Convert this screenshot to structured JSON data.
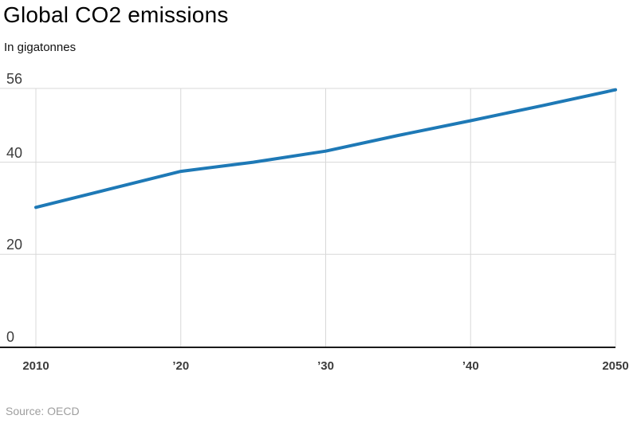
{
  "header": {
    "title": "Global CO2 emissions",
    "subtitle": "In gigatonnes"
  },
  "footer": {
    "source": "Source: OECD"
  },
  "colors": {
    "line": "#1e79b6",
    "grid": "#d8d8d8",
    "axis_line": "#1a1a1a",
    "tick_text": "#3c3c3c",
    "title_text": "#000000",
    "subtitle_text": "#111111",
    "source_text": "#9e9e9e",
    "background": "#ffffff"
  },
  "chart_data": {
    "type": "line",
    "title": "Global CO2 emissions",
    "ylabel_unit": "In gigatonnes",
    "source": "Source: OECD",
    "x": [
      2010,
      2015,
      2020,
      2025,
      2030,
      2035,
      2040,
      2045,
      2050
    ],
    "series": [
      {
        "name": "Global CO2 emissions (gigatonnes)",
        "values": [
          30.2,
          34.1,
          38.0,
          40.0,
          42.4,
          45.8,
          49.0,
          52.3,
          55.7
        ]
      }
    ],
    "xlim": [
      2010,
      2050
    ],
    "ylim": [
      0,
      56
    ],
    "x_ticks": [
      {
        "value": 2010,
        "label": "2010"
      },
      {
        "value": 2020,
        "label": "’20"
      },
      {
        "value": 2030,
        "label": "’30"
      },
      {
        "value": 2040,
        "label": "’40"
      },
      {
        "value": 2050,
        "label": "2050"
      }
    ],
    "y_ticks": [
      {
        "value": 0,
        "label": "0"
      },
      {
        "value": 20,
        "label": "20"
      },
      {
        "value": 40,
        "label": "40"
      },
      {
        "value": 56,
        "label": "56"
      }
    ],
    "grid": true,
    "legend": false
  }
}
